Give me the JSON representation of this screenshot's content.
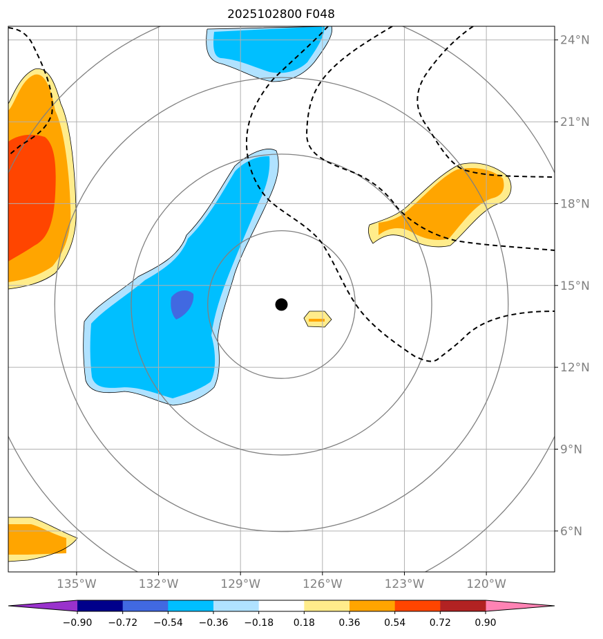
{
  "title": "2025102800 F048",
  "map": {
    "projection": "lat-lon",
    "lon_range": [
      -137.5,
      -117.5
    ],
    "lat_range": [
      4.5,
      24.5
    ],
    "lon_ticks": [
      {
        "value": -135,
        "label": "135°W"
      },
      {
        "value": -132,
        "label": "132°W"
      },
      {
        "value": -129,
        "label": "129°W"
      },
      {
        "value": -126,
        "label": "126°W"
      },
      {
        "value": -123,
        "label": "123°W"
      },
      {
        "value": -120,
        "label": "120°W"
      }
    ],
    "lat_ticks": [
      {
        "value": 24,
        "label": "24°N"
      },
      {
        "value": 21,
        "label": "21°N"
      },
      {
        "value": 18,
        "label": "18°N"
      },
      {
        "value": 15,
        "label": "15°N"
      },
      {
        "value": 12,
        "label": "12°N"
      },
      {
        "value": 9,
        "label": "9°N"
      },
      {
        "value": 6,
        "label": "6°N"
      }
    ],
    "gridlines": true,
    "storm_center": {
      "lon": -127.5,
      "lat": 14.3
    },
    "range_rings_deg": [
      2.7,
      5.5,
      8.3,
      11.1
    ],
    "colors": {
      "grid": "#b0b0b0",
      "ring": "#808080",
      "tick_label": "#808080"
    }
  },
  "colorbar": {
    "levels": [
      "-0.90",
      "-0.72",
      "-0.54",
      "-0.36",
      "-0.18",
      "0.18",
      "0.36",
      "0.54",
      "0.72",
      "0.90"
    ],
    "colors": [
      "#9932cc",
      "#00008b",
      "#4169e1",
      "#00bfff",
      "#b0e2ff",
      "#ffffff",
      "#ffec8b",
      "#ffa500",
      "#ff4500",
      "#b22222",
      "#ff83b4"
    ],
    "extend": "both"
  }
}
